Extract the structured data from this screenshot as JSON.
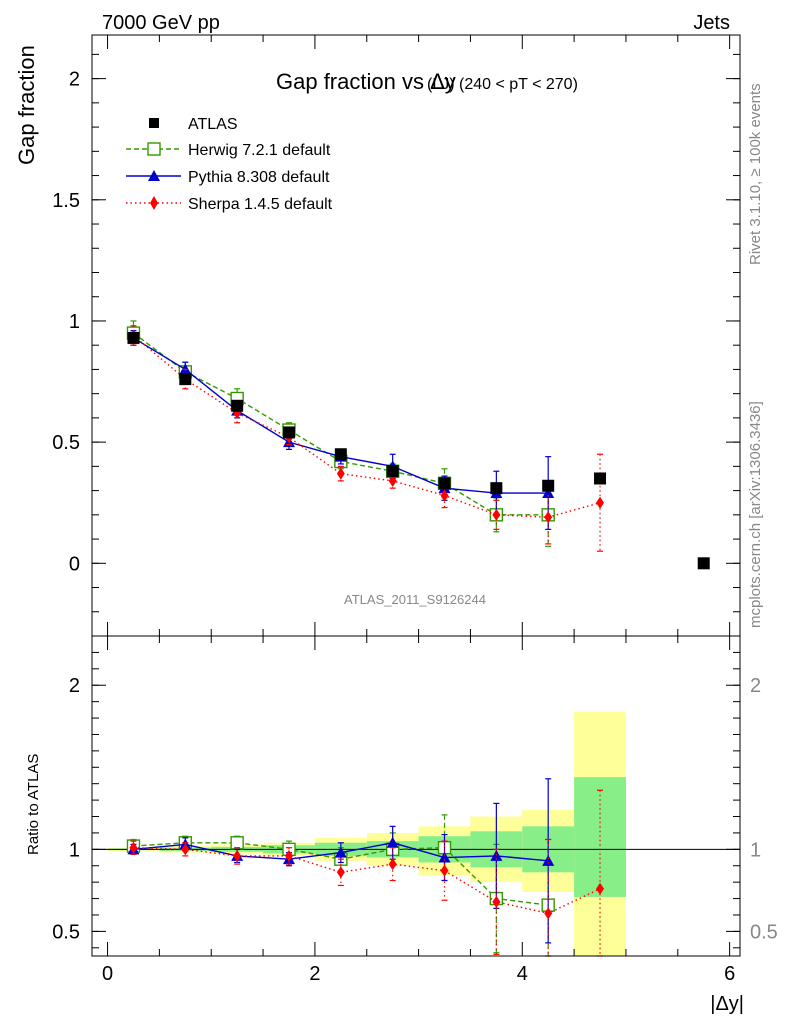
{
  "header": {
    "left": "7000 GeV pp",
    "right": "Jets",
    "side_top": "Rivet 3.1.10, ≥ 100k events",
    "side_bottom": "mcplots.cern.ch [arXiv:1306.3436]",
    "watermark": "ATLAS_2011_S9126244"
  },
  "colors": {
    "atlas": "#000000",
    "herwig": "#339900",
    "pythia": "#0000cc",
    "sherpa": "#ff0000",
    "band_outer": "#ffff99",
    "band_inner": "#88ee88"
  },
  "chart_data": [
    {
      "type": "scatter",
      "title": "Gap fraction vs Δy",
      "title_sub": "(LJ) (240 < pT < 270)",
      "xlabel": "|Δy|",
      "ylabel": "Gap fraction",
      "xlim": [
        -0.15,
        6.1
      ],
      "ylim": [
        -0.3,
        2.18
      ],
      "yticks": [
        "0",
        "0.5",
        "1",
        "1.5",
        "2"
      ],
      "legend_position": "top-left",
      "series": [
        {
          "name": "ATLAS",
          "x": [
            0.25,
            0.75,
            1.25,
            1.75,
            2.25,
            2.75,
            3.25,
            3.75,
            4.25,
            4.75,
            5.75
          ],
          "y": [
            0.93,
            0.76,
            0.65,
            0.54,
            0.45,
            0.38,
            0.33,
            0.31,
            0.32,
            0.35,
            0.0
          ]
        },
        {
          "name": "Herwig 7.2.1 default",
          "x": [
            0.25,
            0.75,
            1.25,
            1.75,
            2.25,
            2.75,
            3.25,
            3.75,
            4.25
          ],
          "y": [
            0.95,
            0.79,
            0.68,
            0.55,
            0.42,
            0.38,
            0.33,
            0.2,
            0.2
          ],
          "err": [
            0.05,
            0.04,
            0.04,
            0.03,
            0.03,
            0.03,
            0.06,
            0.07,
            0.13
          ]
        },
        {
          "name": "Pythia 8.308 default",
          "x": [
            0.25,
            0.75,
            1.25,
            1.75,
            2.25,
            2.75,
            3.25,
            3.75,
            4.25
          ],
          "y": [
            0.93,
            0.8,
            0.63,
            0.5,
            0.44,
            0.4,
            0.31,
            0.29,
            0.29
          ],
          "err": [
            0.03,
            0.03,
            0.03,
            0.03,
            0.03,
            0.05,
            0.05,
            0.09,
            0.15
          ]
        },
        {
          "name": "Sherpa 1.4.5 default",
          "x": [
            0.25,
            0.75,
            1.25,
            1.75,
            2.25,
            2.75,
            3.25,
            3.75,
            4.25,
            4.75
          ],
          "y": [
            0.94,
            0.76,
            0.62,
            0.52,
            0.37,
            0.34,
            0.28,
            0.2,
            0.19,
            0.25
          ],
          "err": [
            0.04,
            0.04,
            0.04,
            0.03,
            0.03,
            0.03,
            0.05,
            0.06,
            0.11,
            0.2
          ]
        }
      ]
    },
    {
      "type": "scatter",
      "title": "",
      "xlabel": "|Δy|",
      "ylabel": "Ratio to ATLAS",
      "xlim": [
        -0.15,
        6.1
      ],
      "ylim": [
        0.35,
        2.3
      ],
      "xticks": [
        "0",
        "2",
        "4",
        "6"
      ],
      "yticks": [
        "0.5",
        "1",
        "2"
      ],
      "bands": {
        "edges": [
          0,
          0.5,
          1,
          1.5,
          2,
          2.5,
          3,
          3.5,
          4,
          4.5,
          5
        ],
        "outer_lo": [
          0.99,
          0.98,
          0.97,
          0.96,
          0.93,
          0.9,
          0.84,
          0.8,
          0.74,
          0.35
        ],
        "outer_hi": [
          1.01,
          1.02,
          1.03,
          1.04,
          1.07,
          1.1,
          1.14,
          1.2,
          1.24,
          1.84
        ],
        "inner_lo": [
          0.995,
          0.99,
          0.985,
          0.975,
          0.96,
          0.95,
          0.92,
          0.89,
          0.86,
          0.71
        ],
        "inner_hi": [
          1.005,
          1.01,
          1.015,
          1.025,
          1.04,
          1.05,
          1.08,
          1.11,
          1.14,
          1.44
        ]
      },
      "series": [
        {
          "name": "Herwig 7.2.1 default",
          "x": [
            0.25,
            0.75,
            1.25,
            1.75,
            2.25,
            2.75,
            3.25,
            3.75,
            4.25
          ],
          "y": [
            1.02,
            1.04,
            1.04,
            1.0,
            0.94,
            1.0,
            1.01,
            0.7,
            0.66
          ],
          "err": [
            0.04,
            0.04,
            0.04,
            0.05,
            0.07,
            0.1,
            0.2,
            0.33,
            0.4
          ]
        },
        {
          "name": "Pythia 8.308 default",
          "x": [
            0.25,
            0.75,
            1.25,
            1.75,
            2.25,
            2.75,
            3.25,
            3.75,
            4.25
          ],
          "y": [
            1.0,
            1.03,
            0.96,
            0.94,
            0.98,
            1.04,
            0.95,
            0.96,
            0.93
          ],
          "err": [
            0.03,
            0.04,
            0.04,
            0.04,
            0.06,
            0.1,
            0.14,
            0.32,
            0.5
          ]
        },
        {
          "name": "Sherpa 1.4.5 default",
          "x": [
            0.25,
            0.75,
            1.25,
            1.75,
            2.25,
            2.75,
            3.25,
            3.75,
            4.25,
            4.75
          ],
          "y": [
            1.01,
            1.0,
            0.96,
            0.96,
            0.86,
            0.91,
            0.87,
            0.68,
            0.61,
            0.76
          ],
          "err": [
            0.04,
            0.04,
            0.05,
            0.05,
            0.08,
            0.1,
            0.18,
            0.32,
            0.45,
            0.6
          ]
        }
      ]
    }
  ]
}
